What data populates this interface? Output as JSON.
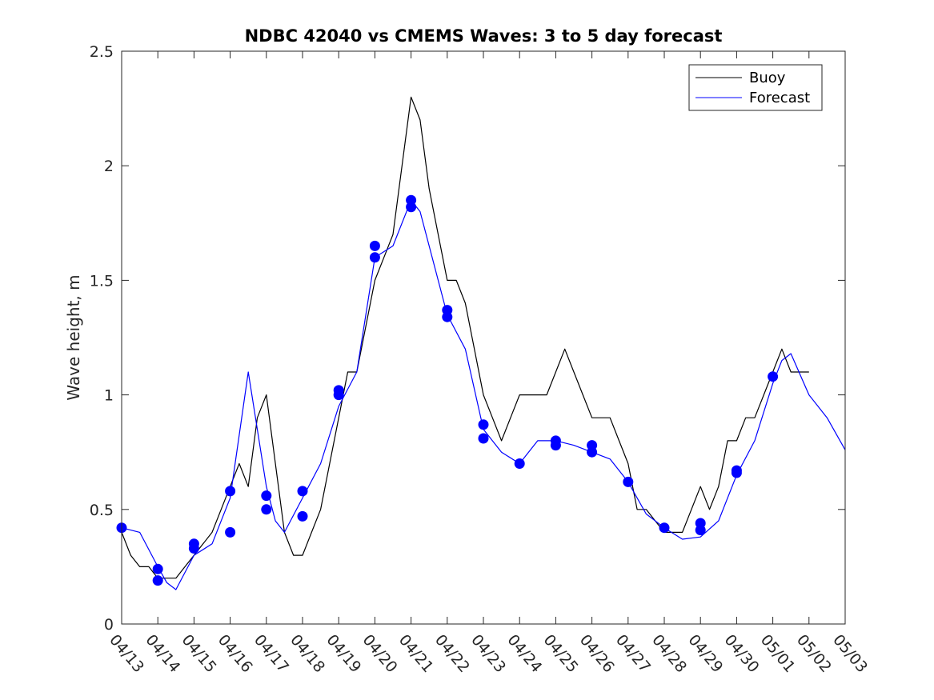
{
  "chart_data": {
    "type": "line",
    "title": "NDBC 42040 vs CMEMS Waves: 3 to 5 day forecast",
    "xlabel": "",
    "ylabel": "Wave height, m",
    "xlim": [
      "04/13",
      "05/03"
    ],
    "ylim": [
      0,
      2.5
    ],
    "grid": false,
    "legend_position": "top-right",
    "x_tick_labels": [
      "04/13",
      "04/14",
      "04/15",
      "04/16",
      "04/17",
      "04/18",
      "04/19",
      "04/20",
      "04/21",
      "04/22",
      "04/23",
      "04/24",
      "04/25",
      "04/26",
      "04/27",
      "04/28",
      "04/29",
      "04/30",
      "05/01",
      "05/02",
      "05/03"
    ],
    "y_ticks": [
      0,
      0.5,
      1,
      1.5,
      2,
      2.5
    ],
    "y_tick_labels": [
      "0",
      "0.5",
      "1",
      "1.5",
      "2",
      "2.5"
    ],
    "colors": {
      "buoy": "#000000",
      "forecast": "#0000ff",
      "axis": "#262626"
    },
    "series": [
      {
        "name": "Buoy",
        "x": [
          "04/13",
          "04/13 06:00",
          "04/13 12:00",
          "04/13 18:00",
          "04/14",
          "04/14 06:00",
          "04/14 12:00",
          "04/14 18:00",
          "04/15",
          "04/15 06:00",
          "04/15 12:00",
          "04/15 18:00",
          "04/16",
          "04/16 06:00",
          "04/16 12:00",
          "04/16 18:00",
          "04/17",
          "04/17 06:00",
          "04/17 12:00",
          "04/17 18:00",
          "04/18",
          "04/18 06:00",
          "04/18 12:00",
          "04/18 18:00",
          "04/19",
          "04/19 06:00",
          "04/19 12:00",
          "04/19 18:00",
          "04/20",
          "04/20 06:00",
          "04/20 12:00",
          "04/20 18:00",
          "04/21",
          "04/21 06:00",
          "04/21 12:00",
          "04/21 18:00",
          "04/22",
          "04/22 06:00",
          "04/22 12:00",
          "04/22 18:00",
          "04/23",
          "04/23 06:00",
          "04/23 12:00",
          "04/23 18:00",
          "04/24",
          "04/24 06:00",
          "04/24 12:00",
          "04/24 18:00",
          "04/25",
          "04/25 06:00",
          "04/25 12:00",
          "04/25 18:00",
          "04/26",
          "04/26 06:00",
          "04/26 12:00",
          "04/26 18:00",
          "04/27",
          "04/27 06:00",
          "04/27 12:00",
          "04/27 18:00",
          "04/28",
          "04/28 06:00",
          "04/28 12:00",
          "04/28 18:00",
          "04/29",
          "04/29 06:00",
          "04/29 12:00",
          "04/29 18:00",
          "04/30",
          "04/30 06:00",
          "04/30 12:00",
          "04/30 18:00",
          "05/01",
          "05/01 06:00",
          "05/01 12:00",
          "05/01 18:00",
          "05/02"
        ],
        "values": [
          0.4,
          0.3,
          0.25,
          0.25,
          0.2,
          0.2,
          0.2,
          0.25,
          0.3,
          0.35,
          0.4,
          0.5,
          0.6,
          0.7,
          0.6,
          0.9,
          1.0,
          0.7,
          0.4,
          0.3,
          0.3,
          0.4,
          0.5,
          0.7,
          0.9,
          1.1,
          1.1,
          1.3,
          1.5,
          1.6,
          1.7,
          2.0,
          2.3,
          2.2,
          1.9,
          1.7,
          1.5,
          1.5,
          1.4,
          1.2,
          1.0,
          0.9,
          0.8,
          0.9,
          1.0,
          1.0,
          1.0,
          1.0,
          1.1,
          1.2,
          1.1,
          1.0,
          0.9,
          0.9,
          0.9,
          0.8,
          0.7,
          0.5,
          0.5,
          0.45,
          0.4,
          0.4,
          0.4,
          0.5,
          0.6,
          0.5,
          0.6,
          0.8,
          0.8,
          0.9,
          0.9,
          1.0,
          1.1,
          1.2,
          1.1,
          1.1,
          1.1
        ]
      },
      {
        "name": "Forecast",
        "x": [
          "04/13",
          "04/13 12:00",
          "04/14",
          "04/14 06:00",
          "04/14 12:00",
          "04/15",
          "04/15 12:00",
          "04/16",
          "04/16 12:00",
          "04/17",
          "04/17 06:00",
          "04/17 12:00",
          "04/18",
          "04/18 12:00",
          "04/19",
          "04/19 12:00",
          "04/20",
          "04/20 12:00",
          "04/21",
          "04/21 06:00",
          "04/21 12:00",
          "04/22",
          "04/22 12:00",
          "04/23",
          "04/23 12:00",
          "04/24",
          "04/24 12:00",
          "04/25",
          "04/25 12:00",
          "04/26",
          "04/26 12:00",
          "04/27",
          "04/27 12:00",
          "04/28",
          "04/28 12:00",
          "04/29",
          "04/29 12:00",
          "04/30",
          "04/30 12:00",
          "05/01",
          "05/01 06:00",
          "05/01 12:00",
          "05/02",
          "05/02 12:00",
          "05/03"
        ],
        "values": [
          0.42,
          0.4,
          0.25,
          0.18,
          0.15,
          0.3,
          0.35,
          0.55,
          1.1,
          0.6,
          0.45,
          0.4,
          0.55,
          0.7,
          0.95,
          1.1,
          1.6,
          1.65,
          1.85,
          1.8,
          1.65,
          1.35,
          1.2,
          0.85,
          0.75,
          0.7,
          0.8,
          0.8,
          0.78,
          0.75,
          0.72,
          0.62,
          0.48,
          0.42,
          0.37,
          0.38,
          0.45,
          0.65,
          0.8,
          1.05,
          1.15,
          1.18,
          1.0,
          0.9,
          0.76
        ]
      }
    ],
    "markers": {
      "x": [
        "04/13",
        "04/14",
        "04/14",
        "04/15",
        "04/15",
        "04/16",
        "04/16",
        "04/17",
        "04/17",
        "04/18",
        "04/18",
        "04/19",
        "04/19",
        "04/20",
        "04/20",
        "04/21",
        "04/21",
        "04/22",
        "04/22",
        "04/23",
        "04/23",
        "04/24",
        "04/25",
        "04/25",
        "04/26",
        "04/26",
        "04/27",
        "04/28",
        "04/29",
        "04/29",
        "04/30",
        "04/30",
        "05/01"
      ],
      "values": [
        0.42,
        0.24,
        0.19,
        0.35,
        0.33,
        0.58,
        0.4,
        0.56,
        0.5,
        0.58,
        0.47,
        1.02,
        1.0,
        1.65,
        1.6,
        1.85,
        1.82,
        1.37,
        1.34,
        0.87,
        0.81,
        0.7,
        0.8,
        0.78,
        0.78,
        0.75,
        0.62,
        0.42,
        0.44,
        0.41,
        0.67,
        0.66,
        1.08
      ]
    }
  }
}
